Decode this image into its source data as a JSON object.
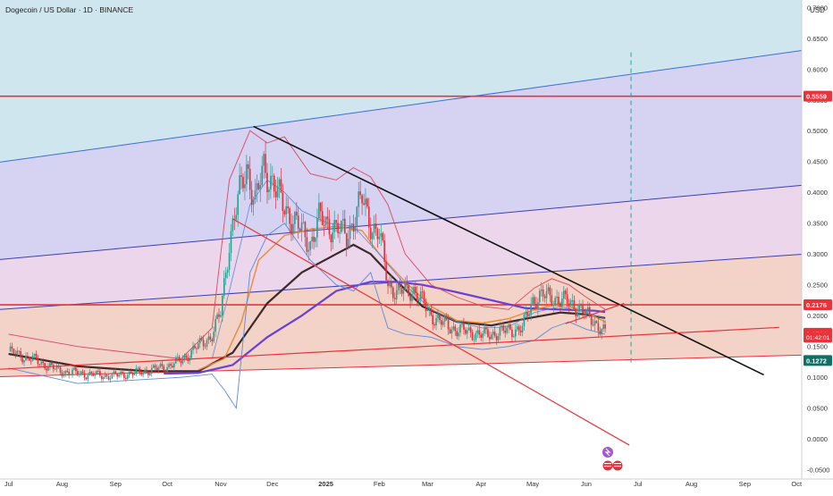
{
  "header": {
    "title": "Dogecoin / US Dollar · 1D · BINANCE",
    "currency": "USD"
  },
  "colors": {
    "band_top": "#cfe6ee",
    "band_purple": "#d6d2f2",
    "band_pink": "#ecd6ec",
    "band_salmon": "#f3d2c8",
    "channel_blue": "#3a6fd8",
    "channel_navy": "#3b3fb8",
    "hline_red": "#e8333a",
    "trend_black": "#111111",
    "trend_red": "#e8333a",
    "ma_dark": "#3a2a2a",
    "ma_purple": "#6a3fd8",
    "ma_orange": "#f08a30",
    "bb_red": "#d84a62",
    "bb_blue": "#5b8ad8",
    "candle_up": "#2a9d8f",
    "candle_down": "#e0303a",
    "projection": "#1aa89a",
    "price_tag": "#e8333a",
    "price_tag_teal": "#0f6f64"
  },
  "chart_data": {
    "type": "candlestick",
    "title": "Dogecoin / US Dollar · 1D · BINANCE",
    "ylabel": "USD",
    "ylim": [
      -0.065,
      0.712
    ],
    "y_ticks": [
      "0.7000",
      "0.6500",
      "0.6000",
      "0.5500",
      "0.5000",
      "0.4500",
      "0.4000",
      "0.3500",
      "0.3000",
      "0.2500",
      "0.2000",
      "0.1500",
      "0.1000",
      "0.0500",
      "0.0000",
      "-0.0500"
    ],
    "y_tick_values": [
      0.7,
      0.65,
      0.6,
      0.55,
      0.5,
      0.45,
      0.4,
      0.35,
      0.3,
      0.25,
      0.2,
      0.15,
      0.1,
      0.05,
      0.0,
      -0.05
    ],
    "x_ticks": [
      "Jul",
      "Aug",
      "Sep",
      "Oct",
      "Nov",
      "Dec",
      "2025",
      "Feb",
      "Mar",
      "Apr",
      "May",
      "Jun",
      "Jul",
      "Aug",
      "Sep",
      "Oct"
    ],
    "x_tick_days": [
      0,
      31,
      62,
      92,
      123,
      153,
      184,
      215,
      243,
      274,
      304,
      335,
      365,
      396,
      427,
      457
    ],
    "x_axis_origin": "2024-07-01",
    "price_labels": [
      {
        "text": "0.5559",
        "value": 0.5559,
        "style": "red"
      },
      {
        "text": "0.2176",
        "value": 0.2176,
        "style": "red"
      },
      {
        "text": "0.1714",
        "value": 0.1714,
        "style": "red"
      },
      {
        "text": "01:42:01",
        "value": 0.1652,
        "style": "red-small"
      },
      {
        "text": "0.1272",
        "value": 0.1272,
        "style": "teal"
      }
    ],
    "horizontal_lines": [
      0.5559,
      0.2176
    ],
    "channel_lines": [
      {
        "name": "upper",
        "start": [
          -5,
          0.449
        ],
        "end": [
          447,
          0.625
        ],
        "color": "channel_blue"
      },
      {
        "name": "mid-upper",
        "start": [
          -5,
          0.291
        ],
        "end": [
          447,
          0.408
        ],
        "color": "channel_navy"
      },
      {
        "name": "mid-lower",
        "start": [
          -5,
          0.21
        ],
        "end": [
          447,
          0.297
        ],
        "color": "channel_navy"
      },
      {
        "name": "base",
        "start": [
          -5,
          0.101
        ],
        "end": [
          447,
          0.135
        ],
        "color": "hline_red"
      }
    ],
    "trend_lines": [
      {
        "name": "descending-resistance",
        "start": [
          142,
          0.507
        ],
        "end": [
          438,
          0.104
        ],
        "color": "trend_black"
      },
      {
        "name": "descending-support",
        "start": [
          130,
          0.357
        ],
        "end": [
          360,
          -0.01
        ],
        "color": "trend_red"
      },
      {
        "name": "ascending-support",
        "start": [
          -5,
          0.113
        ],
        "end": [
          447,
          0.181
        ],
        "color": "trend_red"
      },
      {
        "name": "short-rise",
        "start": [
          323,
          0.187
        ],
        "end": [
          357,
          0.22
        ],
        "color": "trend_red"
      }
    ],
    "projection_day": 361,
    "series": [
      {
        "name": "Close",
        "x": [
          0,
          15,
          30,
          45,
          60,
          75,
          90,
          100,
          110,
          118,
          123,
          128,
          133,
          138,
          143,
          148,
          153,
          158,
          163,
          170,
          175,
          180,
          188,
          196,
          205,
          211,
          215,
          220,
          225,
          235,
          245,
          250,
          260,
          270,
          275,
          283,
          290,
          298,
          304,
          308,
          312,
          318,
          324,
          330,
          335,
          340,
          346
        ],
        "values": [
          0.142,
          0.128,
          0.11,
          0.105,
          0.102,
          0.108,
          0.116,
          0.127,
          0.151,
          0.168,
          0.205,
          0.32,
          0.385,
          0.445,
          0.382,
          0.44,
          0.419,
          0.383,
          0.365,
          0.335,
          0.318,
          0.356,
          0.345,
          0.33,
          0.388,
          0.344,
          0.331,
          0.253,
          0.238,
          0.242,
          0.202,
          0.19,
          0.177,
          0.172,
          0.168,
          0.172,
          0.176,
          0.18,
          0.225,
          0.232,
          0.231,
          0.228,
          0.222,
          0.215,
          0.201,
          0.19,
          0.171
        ]
      },
      {
        "name": "MA-dark",
        "x": [
          0,
          40,
          80,
          110,
          130,
          150,
          170,
          190,
          200,
          210,
          220,
          240,
          260,
          280,
          300,
          320,
          335,
          346
        ],
        "values": [
          0.138,
          0.118,
          0.11,
          0.11,
          0.14,
          0.22,
          0.27,
          0.3,
          0.315,
          0.3,
          0.27,
          0.215,
          0.19,
          0.184,
          0.195,
          0.205,
          0.202,
          0.196
        ]
      },
      {
        "name": "MA-purple",
        "x": [
          90,
          110,
          130,
          150,
          170,
          190,
          210,
          225,
          240,
          260,
          280,
          300,
          320,
          340,
          346
        ],
        "values": [
          0.106,
          0.107,
          0.12,
          0.165,
          0.2,
          0.24,
          0.255,
          0.255,
          0.25,
          0.238,
          0.225,
          0.212,
          0.21,
          0.208,
          0.206
        ]
      },
      {
        "name": "MA-orange",
        "x": [
          110,
          125,
          135,
          145,
          160,
          175,
          190,
          205,
          215,
          230,
          245,
          260,
          275,
          290,
          305,
          320,
          335,
          346
        ],
        "values": [
          0.112,
          0.13,
          0.19,
          0.29,
          0.33,
          0.34,
          0.345,
          0.338,
          0.3,
          0.255,
          0.215,
          0.192,
          0.188,
          0.195,
          0.21,
          0.22,
          0.205,
          0.19
        ]
      },
      {
        "name": "BB-upper",
        "x": [
          0,
          40,
          100,
          118,
          128,
          140,
          150,
          160,
          175,
          190,
          200,
          210,
          220,
          230,
          245,
          260,
          275,
          290,
          305,
          315,
          325,
          335,
          346
        ],
        "values": [
          0.17,
          0.15,
          0.13,
          0.18,
          0.42,
          0.5,
          0.48,
          0.49,
          0.43,
          0.42,
          0.44,
          0.425,
          0.38,
          0.3,
          0.25,
          0.23,
          0.215,
          0.21,
          0.245,
          0.26,
          0.25,
          0.23,
          0.21
        ]
      },
      {
        "name": "BB-lower",
        "x": [
          0,
          40,
          100,
          118,
          125,
          132,
          140,
          150,
          160,
          175,
          190,
          200,
          210,
          220,
          230,
          245,
          260,
          275,
          290,
          305,
          315,
          325,
          335,
          346
        ],
        "values": [
          0.115,
          0.09,
          0.1,
          0.105,
          0.08,
          0.05,
          0.27,
          0.33,
          0.35,
          0.29,
          0.25,
          0.24,
          0.27,
          0.18,
          0.17,
          0.165,
          0.15,
          0.145,
          0.15,
          0.16,
          0.18,
          0.19,
          0.178,
          0.17
        ]
      },
      {
        "name": "BB-mid",
        "x": [
          118,
          128,
          140,
          150,
          160,
          170,
          185,
          200,
          215,
          230,
          245,
          260,
          275,
          290,
          305,
          320,
          335,
          346
        ],
        "values": [
          0.13,
          0.24,
          0.38,
          0.42,
          0.4,
          0.37,
          0.35,
          0.345,
          0.3,
          0.25,
          0.21,
          0.19,
          0.18,
          0.182,
          0.205,
          0.215,
          0.205,
          0.195
        ]
      }
    ]
  }
}
